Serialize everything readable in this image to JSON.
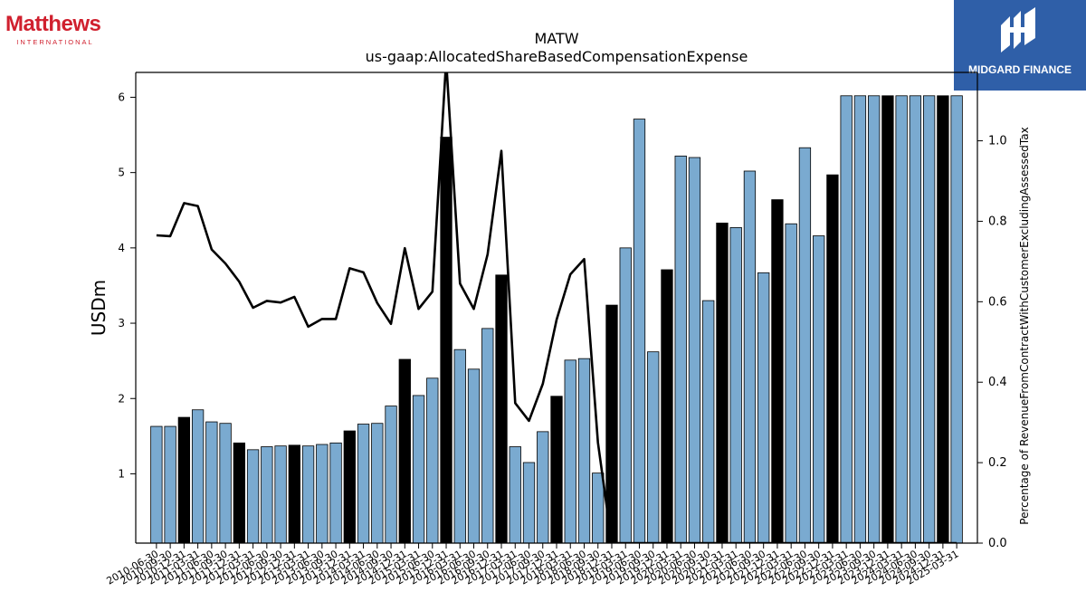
{
  "header": {
    "left_logo": {
      "brand": "Matthews",
      "sub": "INTERNATIONAL"
    },
    "right_logo": {
      "text": "MIDGARD FINANCE",
      "icon": "midgard-logo-icon",
      "bg_color": "#2f5fa8"
    }
  },
  "chart_data": {
    "type": "bar",
    "title": "MATW",
    "subtitle": "us-gaap:AllocatedShareBasedCompensationExpense",
    "ylabel": "USDm",
    "y2label": "Percentage of RevenueFromContractWithCustomerExcludingAssessedTax",
    "ylim": [
      0.08,
      6.33
    ],
    "y2lim": [
      0.0,
      1.17
    ],
    "yticks": [
      1,
      2,
      3,
      4,
      5,
      6
    ],
    "y2ticks": [
      0.0,
      0.2,
      0.4,
      0.6,
      0.8,
      1.0
    ],
    "y2ticklabels": [
      "0.0",
      "0.2",
      "0.4",
      "0.6",
      "0.8",
      "1.0"
    ],
    "colors": {
      "bar": "#7aaad0",
      "bar_q4": "#000000",
      "line": "#000000"
    },
    "categories": [
      "2010-06-30",
      "2010-09-30",
      "2010-12-31",
      "2011-03-31",
      "2011-06-30",
      "2011-09-30",
      "2011-12-31",
      "2012-03-31",
      "2012-06-30",
      "2012-09-30",
      "2012-12-31",
      "2013-03-31",
      "2013-06-30",
      "2013-09-30",
      "2013-12-31",
      "2014-03-31",
      "2014-06-30",
      "2014-09-30",
      "2014-12-31",
      "2015-03-31",
      "2015-06-30",
      "2015-12-31",
      "2016-03-31",
      "2016-06-30",
      "2016-09-30",
      "2016-12-31",
      "2017-03-31",
      "2017-06-30",
      "2017-09-30",
      "2017-12-31",
      "2018-03-31",
      "2018-06-30",
      "2018-09-30",
      "2018-12-31",
      "2019-03-31",
      "2019-06-30",
      "2019-09-30",
      "2019-12-31",
      "2020-03-31",
      "2020-06-30",
      "2020-09-30",
      "2020-12-31",
      "2021-03-31",
      "2021-06-30",
      "2021-09-30",
      "2021-12-31",
      "2022-03-31",
      "2022-06-30",
      "2022-09-30",
      "2022-12-31",
      "2023-03-31",
      "2023-06-30",
      "2023-09-30",
      "2023-12-31",
      "2024-03-31",
      "2024-06-30",
      "2024-09-30",
      "2024-12-31",
      "2025-03-31"
    ],
    "xtick_labels": [
      "2010-06-30",
      "2010-09-30",
      "2010-12-31",
      "2011-03-31",
      "2011-06-30",
      "2011-09-30",
      "2011-12-31",
      "2012-03-31",
      "2012-06-30",
      "2012-09-30",
      "2012-12-31",
      "2013-03-31",
      "2013-06-30",
      "2013-09-30",
      "2013-12-31",
      "2014-03-31",
      "2014-06-30",
      "2014-09-30",
      "2014-12-31",
      "2015-03-31",
      "2015-06-30",
      "2015-12-31",
      "2016-03-31",
      "2016-06-30",
      "2016-09-30",
      "2016-12-31",
      "2017-03-31",
      "2017-06-30",
      "2017-09-30",
      "2017-12-31",
      "2018-03-31",
      "2018-06-30",
      "2018-09-30",
      "2018-12-31",
      "2019-03-31",
      "2019-06-30",
      "2019-09-30",
      "2019-12-31",
      "2020-03-31",
      "2020-06-30",
      "2020-09-30",
      "2020-12-31",
      "2021-03-31",
      "2021-06-30",
      "2021-09-30",
      "2021-12-31",
      "2022-03-31",
      "2022-06-30",
      "2022-09-30",
      "2022-12-31",
      "2023-03-31",
      "2023-06-30",
      "2023-09-30",
      "2023-12-31",
      "2024-03-31",
      "2024-06-30",
      "2024-09-30",
      "2024-12-31",
      "2025-03-31"
    ],
    "series": [
      {
        "type": "bar",
        "axis": "left",
        "values": [
          1.63,
          1.63,
          1.75,
          1.85,
          1.69,
          1.67,
          1.41,
          1.32,
          1.36,
          1.37,
          1.38,
          1.37,
          1.39,
          1.41,
          1.57,
          1.66,
          1.67,
          1.9,
          2.52,
          2.04,
          2.27,
          5.47,
          2.65,
          2.39,
          2.93,
          3.64,
          1.36,
          1.15,
          1.56,
          2.03,
          2.51,
          2.53,
          1.01,
          3.24,
          4.0,
          5.71,
          2.62,
          3.71,
          5.22,
          5.2,
          3.3,
          4.33,
          4.27,
          5.02,
          3.67,
          4.64,
          4.32,
          5.33,
          4.16,
          4.97,
          6.02,
          6.02,
          6.02,
          6.02,
          6.02,
          6.02,
          6.02,
          6.02,
          6.02
        ],
        "q4_flags": [
          false,
          false,
          true,
          false,
          false,
          false,
          true,
          false,
          false,
          false,
          true,
          false,
          false,
          false,
          true,
          false,
          false,
          false,
          true,
          false,
          false,
          true,
          false,
          false,
          false,
          true,
          false,
          false,
          false,
          true,
          false,
          false,
          false,
          true,
          false,
          false,
          false,
          true,
          false,
          false,
          false,
          true,
          false,
          false,
          false,
          true,
          false,
          false,
          false,
          true,
          false,
          false,
          false,
          true,
          false,
          false,
          false,
          true,
          false
        ]
      },
      {
        "type": "line",
        "axis": "right",
        "values": [
          0.765,
          0.763,
          0.845,
          0.838,
          0.73,
          0.695,
          0.65,
          0.585,
          0.602,
          0.598,
          0.612,
          0.538,
          0.557,
          0.557,
          0.683,
          0.673,
          0.597,
          0.545,
          0.733,
          0.582,
          0.625,
          1.2,
          0.645,
          0.582,
          0.718,
          0.975,
          0.348,
          0.304,
          0.396,
          0.555,
          0.668,
          0.706,
          0.25,
          0.0,
          0.0,
          0.0,
          0.0,
          0.0,
          0.0,
          0.0,
          0.0,
          0.0,
          0.0,
          0.0,
          0.0,
          0.0,
          0.0,
          0.0,
          0.0,
          0.0,
          0.0,
          0.0,
          0.0,
          0.0,
          0.0,
          0.0,
          0.0,
          0.0,
          0.0
        ]
      }
    ]
  }
}
